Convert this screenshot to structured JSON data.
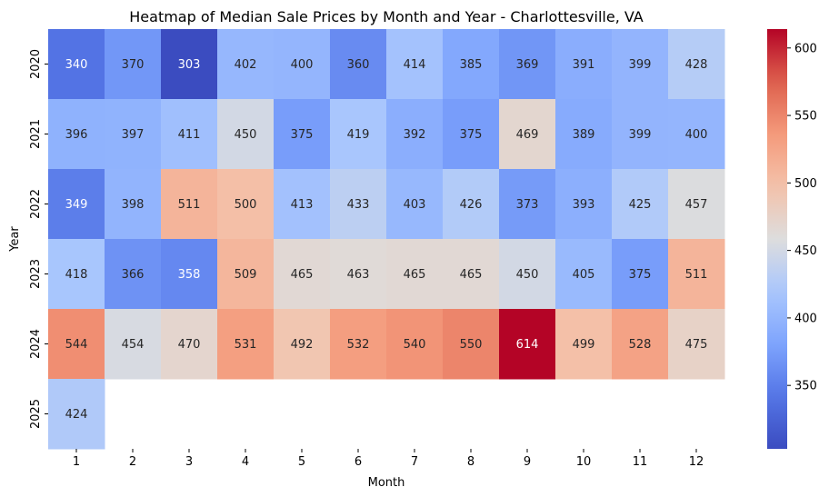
{
  "chart_data": {
    "type": "heatmap",
    "title": "Heatmap of Median Sale Prices by Month and Year - Charlottesville, VA",
    "xlabel": "Month",
    "ylabel": "Year",
    "x_categories": [
      "1",
      "2",
      "3",
      "4",
      "5",
      "6",
      "7",
      "8",
      "9",
      "10",
      "11",
      "12"
    ],
    "y_categories": [
      "2020",
      "2021",
      "2022",
      "2023",
      "2024",
      "2025"
    ],
    "values": [
      [
        340,
        370,
        303,
        402,
        400,
        360,
        414,
        385,
        369,
        391,
        399,
        428
      ],
      [
        396,
        397,
        411,
        450,
        375,
        419,
        392,
        375,
        469,
        389,
        399,
        400
      ],
      [
        349,
        398,
        511,
        500,
        413,
        433,
        403,
        426,
        373,
        393,
        425,
        457
      ],
      [
        418,
        366,
        358,
        509,
        465,
        463,
        465,
        465,
        450,
        405,
        375,
        511
      ],
      [
        544,
        454,
        470,
        531,
        492,
        532,
        540,
        550,
        614,
        499,
        528,
        475
      ],
      [
        424,
        null,
        null,
        null,
        null,
        null,
        null,
        null,
        null,
        null,
        null,
        null
      ]
    ],
    "colormap": "coolwarm",
    "vmin": 303,
    "vmax": 614,
    "colorbar_ticks": [
      350,
      400,
      450,
      500,
      550,
      600
    ],
    "annotation_colors": {
      "dark": "#262626",
      "light": "#ffffff"
    }
  }
}
